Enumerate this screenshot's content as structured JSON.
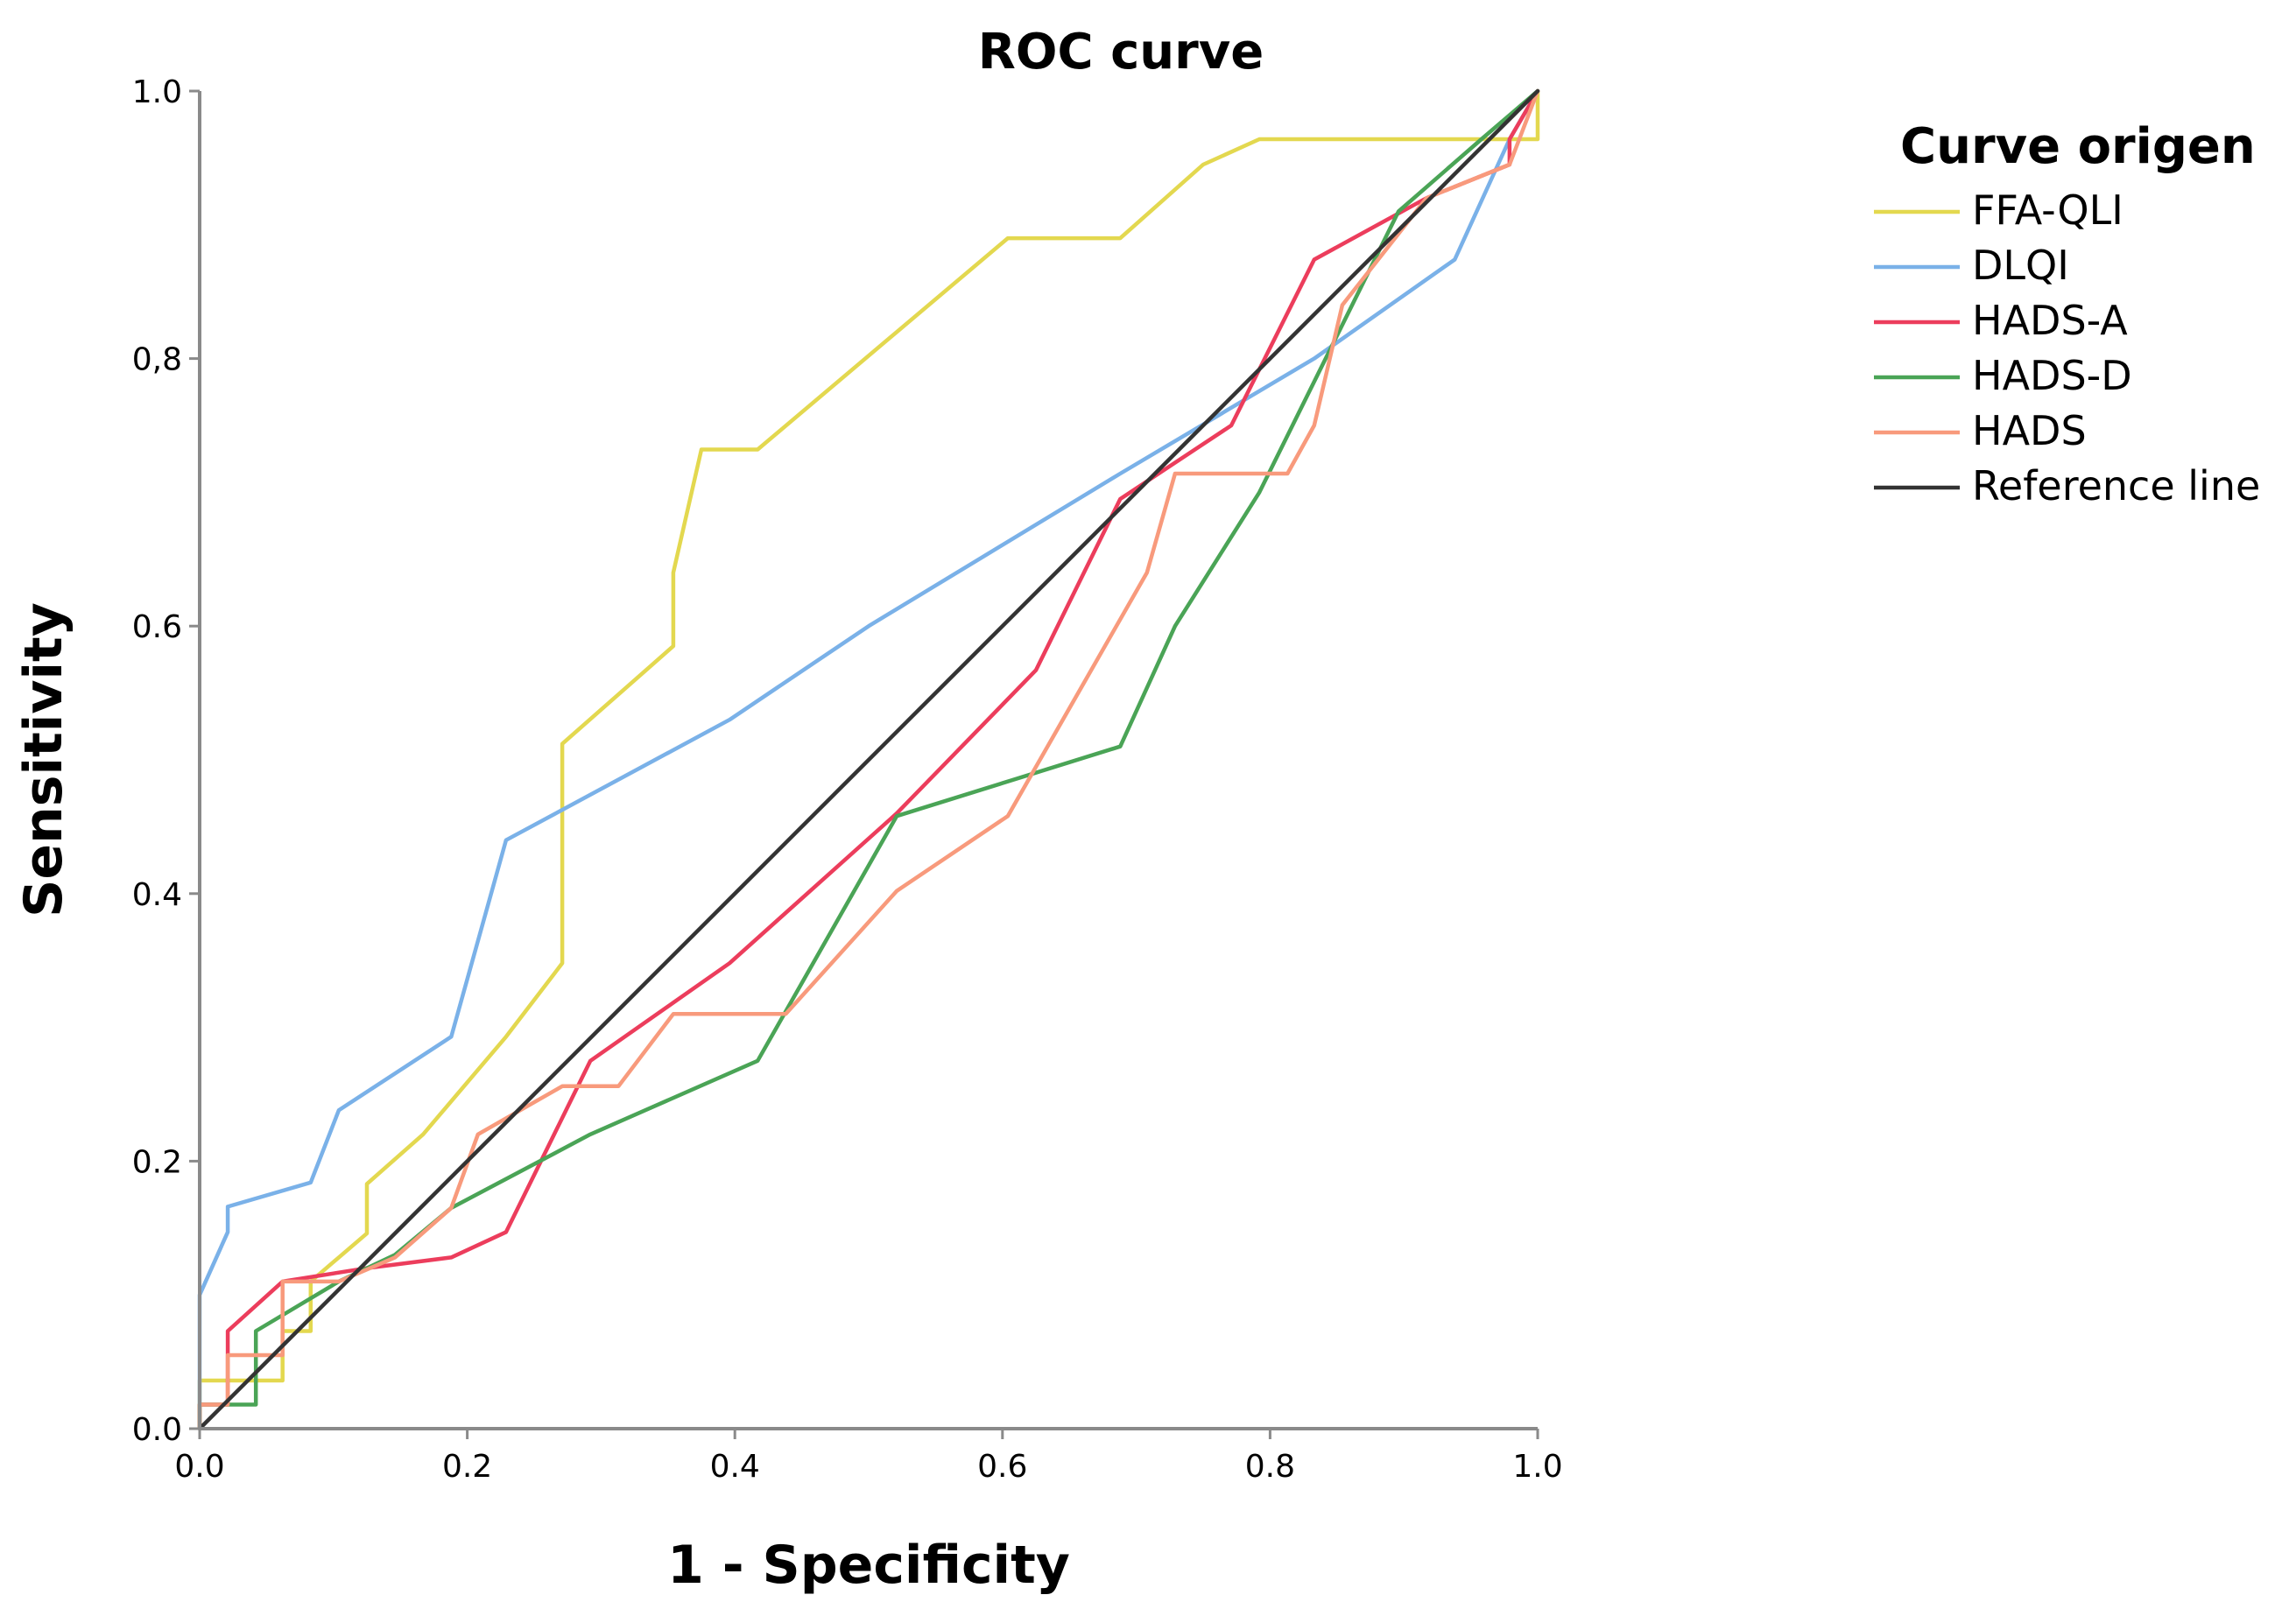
{
  "chart_data": {
    "type": "line",
    "title": "ROC curve",
    "xlabel": "1 - Specificity",
    "ylabel": "Sensitivity",
    "xlim": [
      0,
      1
    ],
    "ylim": [
      0,
      1
    ],
    "x_ticks": [
      {
        "value": 0.0,
        "label": "0.0"
      },
      {
        "value": 0.2,
        "label": "0.2"
      },
      {
        "value": 0.4,
        "label": "0.4"
      },
      {
        "value": 0.6,
        "label": "0.6"
      },
      {
        "value": 0.8,
        "label": "0.8"
      },
      {
        "value": 1.0,
        "label": "1.0"
      }
    ],
    "y_ticks": [
      {
        "value": 0.0,
        "label": "0.0"
      },
      {
        "value": 0.2,
        "label": "0.2"
      },
      {
        "value": 0.4,
        "label": "0.4"
      },
      {
        "value": 0.6,
        "label": "0.6"
      },
      {
        "value": 0.8,
        "label": "0,8"
      },
      {
        "value": 1.0,
        "label": "1.0"
      }
    ],
    "grid": false,
    "legend": {
      "title": "Curve origen",
      "placement": "top-right-outside"
    },
    "series": [
      {
        "name": "FFA-QLI",
        "color": "#e3d84f",
        "points": [
          [
            0,
            0
          ],
          [
            0,
            0.036
          ],
          [
            0.062,
            0.036
          ],
          [
            0.062,
            0.073
          ],
          [
            0.083,
            0.073
          ],
          [
            0.083,
            0.11
          ],
          [
            0.104,
            0.128
          ],
          [
            0.125,
            0.146
          ],
          [
            0.125,
            0.183
          ],
          [
            0.167,
            0.22
          ],
          [
            0.229,
            0.293
          ],
          [
            0.271,
            0.348
          ],
          [
            0.271,
            0.512
          ],
          [
            0.354,
            0.585
          ],
          [
            0.354,
            0.64
          ],
          [
            0.375,
            0.732
          ],
          [
            0.417,
            0.732
          ],
          [
            0.604,
            0.89
          ],
          [
            0.688,
            0.89
          ],
          [
            0.75,
            0.945
          ],
          [
            0.792,
            0.964
          ],
          [
            1.0,
            0.964
          ],
          [
            1.0,
            1.0
          ]
        ]
      },
      {
        "name": "DLQI",
        "color": "#7ab1e8",
        "points": [
          [
            0,
            0
          ],
          [
            0,
            0.1
          ],
          [
            0.021,
            0.147
          ],
          [
            0.021,
            0.166
          ],
          [
            0.083,
            0.184
          ],
          [
            0.104,
            0.238
          ],
          [
            0.188,
            0.293
          ],
          [
            0.229,
            0.44
          ],
          [
            0.396,
            0.53
          ],
          [
            0.5,
            0.6
          ],
          [
            0.688,
            0.714
          ],
          [
            0.833,
            0.8
          ],
          [
            0.938,
            0.874
          ],
          [
            0.979,
            0.964
          ],
          [
            1.0,
            1.0
          ]
        ]
      },
      {
        "name": "HADS-A",
        "color": "#ec3d5c",
        "points": [
          [
            0,
            0
          ],
          [
            0,
            0.018
          ],
          [
            0.021,
            0.018
          ],
          [
            0.021,
            0.073
          ],
          [
            0.062,
            0.11
          ],
          [
            0.125,
            0.12
          ],
          [
            0.188,
            0.128
          ],
          [
            0.229,
            0.147
          ],
          [
            0.292,
            0.275
          ],
          [
            0.396,
            0.348
          ],
          [
            0.521,
            0.46
          ],
          [
            0.625,
            0.567
          ],
          [
            0.688,
            0.695
          ],
          [
            0.771,
            0.75
          ],
          [
            0.833,
            0.874
          ],
          [
            0.917,
            0.92
          ],
          [
            0.979,
            0.945
          ],
          [
            0.979,
            0.964
          ],
          [
            1.0,
            1.0
          ]
        ]
      },
      {
        "name": "HADS-D",
        "color": "#4aa456",
        "points": [
          [
            0,
            0
          ],
          [
            0,
            0.018
          ],
          [
            0.042,
            0.018
          ],
          [
            0.042,
            0.073
          ],
          [
            0.104,
            0.11
          ],
          [
            0.146,
            0.13
          ],
          [
            0.188,
            0.165
          ],
          [
            0.292,
            0.22
          ],
          [
            0.417,
            0.275
          ],
          [
            0.521,
            0.458
          ],
          [
            0.688,
            0.51
          ],
          [
            0.729,
            0.6
          ],
          [
            0.792,
            0.7
          ],
          [
            0.896,
            0.91
          ],
          [
            0.958,
            0.964
          ],
          [
            1.0,
            1.0
          ]
        ]
      },
      {
        "name": "HADS",
        "color": "#f89a7c",
        "points": [
          [
            0,
            0
          ],
          [
            0,
            0.018
          ],
          [
            0.021,
            0.018
          ],
          [
            0.021,
            0.055
          ],
          [
            0.062,
            0.055
          ],
          [
            0.062,
            0.11
          ],
          [
            0.104,
            0.11
          ],
          [
            0.146,
            0.128
          ],
          [
            0.188,
            0.165
          ],
          [
            0.208,
            0.22
          ],
          [
            0.271,
            0.256
          ],
          [
            0.313,
            0.256
          ],
          [
            0.354,
            0.31
          ],
          [
            0.438,
            0.31
          ],
          [
            0.521,
            0.402
          ],
          [
            0.604,
            0.458
          ],
          [
            0.708,
            0.64
          ],
          [
            0.729,
            0.714
          ],
          [
            0.813,
            0.714
          ],
          [
            0.833,
            0.75
          ],
          [
            0.854,
            0.84
          ],
          [
            0.917,
            0.92
          ],
          [
            0.979,
            0.945
          ],
          [
            1.0,
            1.0
          ]
        ]
      },
      {
        "name": "Reference line",
        "color": "#333333",
        "points": [
          [
            0,
            0
          ],
          [
            1,
            1
          ]
        ]
      }
    ]
  }
}
